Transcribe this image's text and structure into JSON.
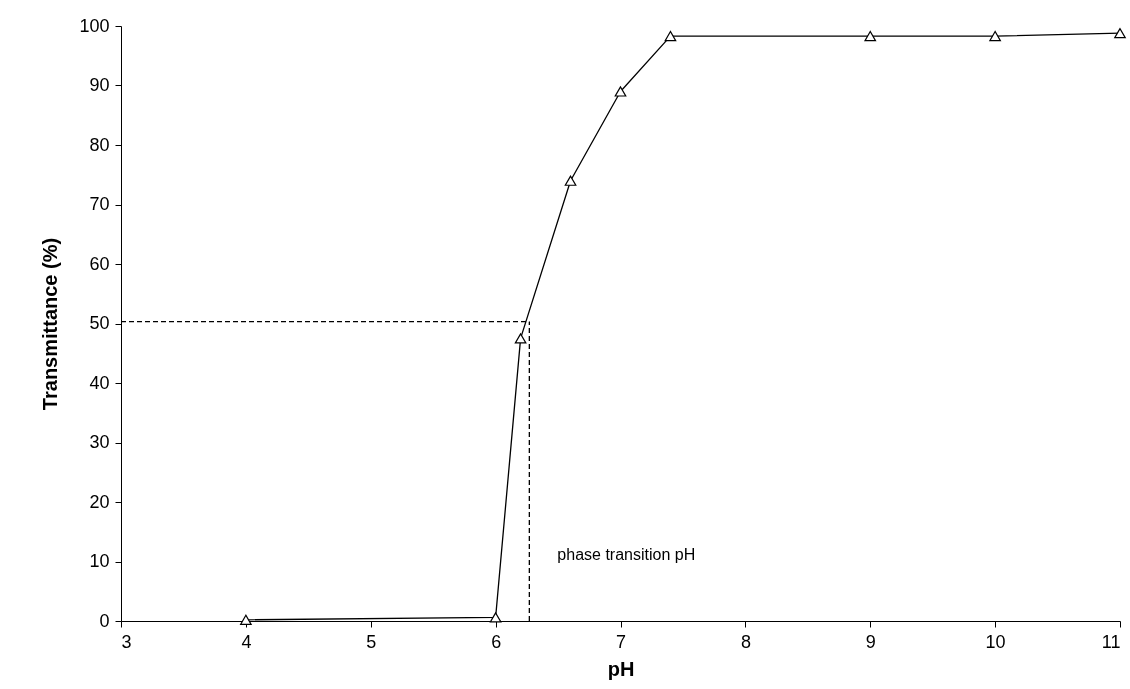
{
  "chart_data": {
    "type": "line",
    "xlabel": "pH",
    "ylabel": "Transmittance (%)",
    "x": [
      4,
      6,
      6.2,
      6.6,
      7,
      7.4,
      9,
      10,
      11
    ],
    "series": [
      {
        "color": "#000000",
        "values": [
          0.2,
          0.6,
          47.5,
          74,
          89,
          98.3,
          98.3,
          98.3,
          98.8
        ]
      }
    ],
    "xlim": [
      3,
      11
    ],
    "xticks": [
      3,
      4,
      5,
      6,
      7,
      8,
      9,
      10,
      11
    ],
    "ylim": [
      0,
      100
    ],
    "yticks": [
      0,
      10,
      20,
      30,
      40,
      50,
      60,
      70,
      80,
      90,
      100
    ],
    "ref_lines": [
      {
        "axis": "y",
        "value": 50.3,
        "line_style": "dashed",
        "color": "#000000"
      },
      {
        "axis": "x",
        "value": 6.27,
        "label": "phase transition pH",
        "line_style": "dashed",
        "color": "#000000"
      }
    ],
    "marker": "triangle",
    "line_style": "solid"
  }
}
